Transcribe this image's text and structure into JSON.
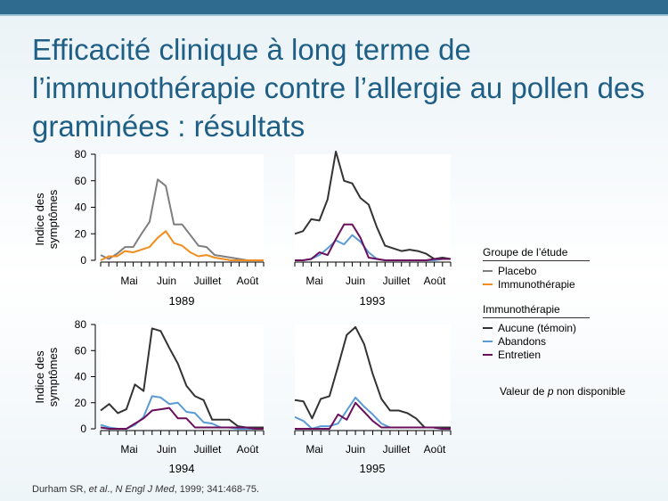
{
  "slide": {
    "title": "Efficacité clinique à long terme de l’immunothérapie contre l’allergie au pollen des graminées : résultats",
    "y_axis_label_line1": "Indice des",
    "y_axis_label_line2": "symptômes",
    "note_prefix": "Valeur de ",
    "note_italic": "p",
    "note_suffix": " non disponible",
    "source_prefix": "Durham SR, ",
    "source_italic1": "et al",
    "source_mid": "., ",
    "source_italic2": "N Engl J Med",
    "source_suffix": ", 1999; 341:468-75."
  },
  "legend": {
    "group1_title": "Groupe de l’étude",
    "group1_items": [
      {
        "label": "Placebo",
        "color": "#7f7f7f"
      },
      {
        "label": "Immunothérapie",
        "color": "#f28c1e"
      }
    ],
    "group2_title": "Immunothérapie",
    "group2_items": [
      {
        "label": "Aucune (témoin)",
        "color": "#333333"
      },
      {
        "label": "Abandons",
        "color": "#5a9bd5"
      },
      {
        "label": "Entretien",
        "color": "#6a0f5c"
      }
    ]
  },
  "chart_data": [
    {
      "type": "line",
      "year": "1989",
      "ylim": [
        0,
        80
      ],
      "yticks": [
        0,
        20,
        40,
        60,
        80
      ],
      "xlabels": [
        "Mai",
        "Juin",
        "Juillet",
        "Août"
      ],
      "series": [
        {
          "name": "Placebo",
          "color": "#7f7f7f",
          "values": [
            4,
            1,
            5,
            10,
            10,
            20,
            29,
            61,
            56,
            27,
            27,
            19,
            11,
            10,
            4,
            3,
            2,
            1,
            0,
            0,
            0
          ]
        },
        {
          "name": "Immunothérapie",
          "color": "#f28c1e",
          "values": [
            0,
            3,
            3,
            7,
            6,
            8,
            10,
            17,
            22,
            13,
            11,
            6,
            3,
            4,
            2,
            1,
            0,
            0,
            0,
            0,
            0
          ]
        }
      ]
    },
    {
      "type": "line",
      "year": "1993",
      "ylim": [
        0,
        80
      ],
      "yticks": [
        0,
        20,
        40,
        60,
        80
      ],
      "xlabels": [
        "Mai",
        "Juin",
        "Juillet",
        "Août"
      ],
      "series": [
        {
          "name": "Aucune (témoin)",
          "color": "#333333",
          "values": [
            20,
            22,
            31,
            30,
            46,
            82,
            60,
            58,
            47,
            42,
            25,
            11,
            9,
            7,
            8,
            7,
            5,
            1,
            2,
            1
          ]
        },
        {
          "name": "Abandons",
          "color": "#5a9bd5",
          "values": [
            0,
            0,
            1,
            4,
            9,
            15,
            12,
            19,
            14,
            6,
            1,
            0,
            0,
            0,
            0,
            0,
            0,
            0,
            1,
            1
          ]
        },
        {
          "name": "Entretien",
          "color": "#6a0f5c",
          "values": [
            0,
            0,
            1,
            6,
            4,
            16,
            27,
            27,
            17,
            2,
            1,
            0,
            0,
            0,
            0,
            0,
            0,
            1,
            1,
            1
          ]
        }
      ]
    },
    {
      "type": "line",
      "year": "1994",
      "ylim": [
        0,
        80
      ],
      "yticks": [
        0,
        20,
        40,
        60,
        80
      ],
      "xlabels": [
        "Mai",
        "Juin",
        "Juillet",
        "Août"
      ],
      "series": [
        {
          "name": "Aucune (témoin)",
          "color": "#333333",
          "values": [
            14,
            19,
            12,
            15,
            34,
            29,
            77,
            75,
            62,
            50,
            33,
            25,
            22,
            7,
            7,
            7,
            2,
            1,
            1,
            1
          ]
        },
        {
          "name": "Abandons",
          "color": "#5a9bd5",
          "values": [
            3,
            1,
            0,
            0,
            3,
            9,
            25,
            24,
            19,
            20,
            13,
            12,
            5,
            4,
            1,
            1,
            0,
            0,
            0,
            0
          ]
        },
        {
          "name": "Entretien",
          "color": "#6a0f5c",
          "values": [
            1,
            0,
            0,
            0,
            4,
            8,
            14,
            15,
            16,
            8,
            8,
            1,
            1,
            1,
            1,
            1,
            1,
            1,
            0,
            0
          ]
        }
      ]
    },
    {
      "type": "line",
      "year": "1995",
      "ylim": [
        0,
        80
      ],
      "yticks": [
        0,
        20,
        40,
        60,
        80
      ],
      "xlabels": [
        "Mai",
        "Juin",
        "Juillet",
        "Août"
      ],
      "series": [
        {
          "name": "Aucune (témoin)",
          "color": "#333333",
          "values": [
            22,
            21,
            8,
            23,
            25,
            48,
            72,
            78,
            65,
            42,
            23,
            14,
            14,
            12,
            8,
            1,
            1,
            1,
            1
          ]
        },
        {
          "name": "Abandons",
          "color": "#5a9bd5",
          "values": [
            9,
            6,
            0,
            2,
            2,
            4,
            14,
            24,
            17,
            11,
            4,
            1,
            1,
            1,
            1,
            1,
            1,
            0,
            0
          ]
        },
        {
          "name": "Entretien",
          "color": "#6a0f5c",
          "values": [
            0,
            0,
            0,
            0,
            0,
            11,
            7,
            20,
            13,
            6,
            1,
            1,
            1,
            1,
            1,
            1,
            1,
            0,
            0
          ]
        }
      ]
    }
  ]
}
